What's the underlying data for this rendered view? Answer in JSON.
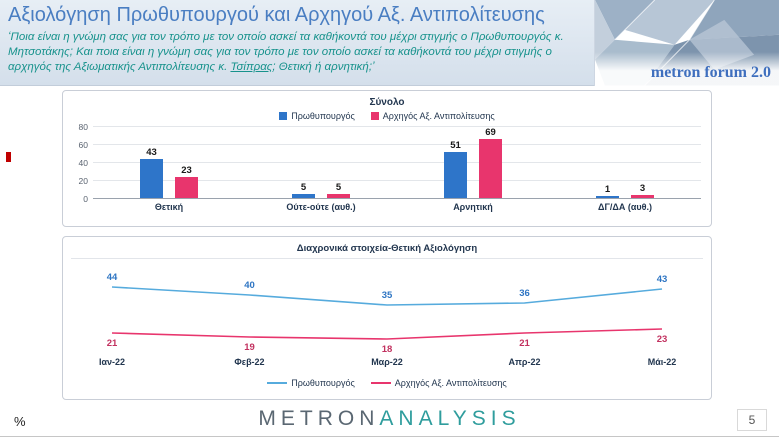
{
  "header": {
    "title": "Αξιολόγηση Πρωθυπουργού και Αρχηγού Αξ. Αντιπολίτευσης",
    "subtitle_pre": "‘Ποια είναι η γνώμη σας για τον τρόπο με τον οποίο ασκεί τα καθήκοντά του μέχρι στιγμής ο Πρωθυπουργός κ. Μητσοτάκης; Και ποια είναι η γνώμη σας για τον τρόπο με τον οποίο ασκεί τα καθήκοντά του μέχρι στιγμής ο αρχηγός της Αξιωματικής Αντιπολίτευσης κ. ",
    "subtitle_underlined": "Τσίπρας",
    "subtitle_post": "; Θετική ή αρνητική;’",
    "logo_text": "metron forum 2.0"
  },
  "chart_data": [
    {
      "type": "bar",
      "title": "Σύνολο",
      "categories": [
        "Θετική",
        "Ούτε-ούτε (αυθ.)",
        "Αρνητική",
        "ΔΓ/ΔΑ (αυθ.)"
      ],
      "series": [
        {
          "name": "Πρωθυπουργός",
          "color": "#2e75c9",
          "values": [
            43,
            5,
            51,
            1
          ]
        },
        {
          "name": "Αρχηγός Αξ. Αντιπολίτευσης",
          "color": "#e8356d",
          "values": [
            23,
            5,
            69,
            3
          ]
        }
      ],
      "ylim": [
        0,
        80
      ],
      "yticks": [
        0,
        20,
        40,
        60,
        80
      ],
      "grid": true,
      "legend_position": "top"
    },
    {
      "type": "line",
      "title": "Διαχρονικά στοιχεία-Θετική Αξιολόγηση",
      "categories": [
        "Ιαν-22",
        "Φεβ-22",
        "Μαρ-22",
        "Απρ-22",
        "Μάι-22"
      ],
      "series": [
        {
          "name": "Πρωθυπουργός",
          "color": "#2e75c3",
          "line_color": "#56abdd",
          "label_position": "above",
          "values": [
            44,
            40,
            35,
            36,
            43
          ]
        },
        {
          "name": "Αρχηγός Αξ. Αντιπολίτευσης",
          "color": "#c2315f",
          "line_color": "#e8356d",
          "label_position": "below",
          "values": [
            21,
            19,
            18,
            21,
            23
          ]
        }
      ],
      "grid": false,
      "legend_position": "bottom"
    }
  ],
  "footer": {
    "percent_label": "%",
    "brand_metron": "METRON",
    "brand_analysis": "ANALYSIS",
    "page_number": "5"
  }
}
